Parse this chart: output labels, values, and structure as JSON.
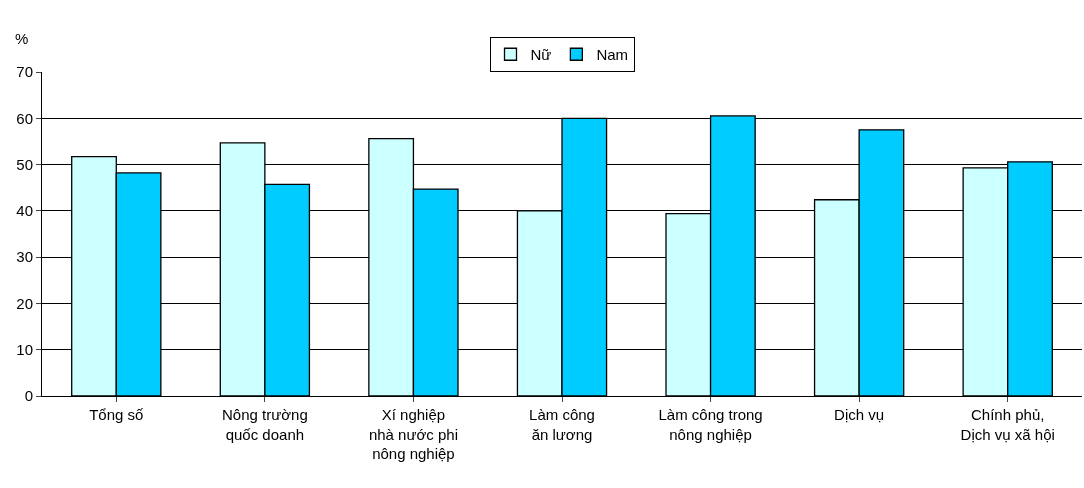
{
  "chart_data": {
    "type": "bar",
    "ylabel": "%",
    "categories": [
      "Tổng số",
      "Nông trường\nquốc doanh",
      "Xí nghiệp\nnhà nước phi\nnông nghiệp",
      "Làm công\năn lương",
      "Làm công trong\nnông nghiệp",
      "Dịch vụ",
      "Chính phủ,\nDịch vụ xã hội"
    ],
    "series": [
      {
        "name": "Nữ",
        "color": "#ccffff",
        "values": [
          51.7,
          54.7,
          55.6,
          40.0,
          39.4,
          42.4,
          49.3
        ]
      },
      {
        "name": "Nam",
        "color": "#00ccff",
        "values": [
          48.2,
          45.7,
          44.7,
          60.0,
          60.5,
          57.5,
          50.6
        ]
      }
    ],
    "ylim": [
      0,
      70
    ],
    "yticks": [
      0,
      10,
      20,
      30,
      40,
      50,
      60,
      70
    ],
    "grid": "y",
    "legend": "top"
  }
}
